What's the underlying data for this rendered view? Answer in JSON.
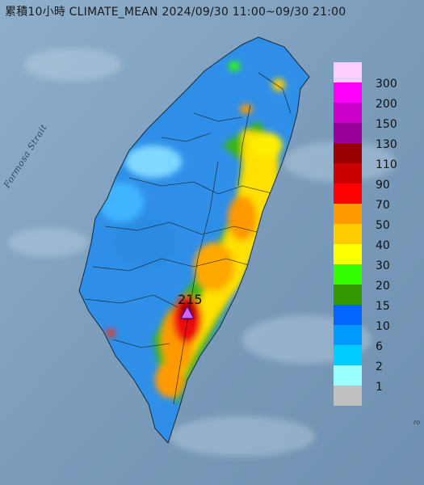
{
  "title": "累積10小時 CLIMATE_MEAN 2024/09/30 11:00~09/30 21:00",
  "strait_label": "Formosa Strait",
  "peak_value": "215",
  "edge_mark": "ro",
  "legend": [
    {
      "label": "300",
      "color": "#ffccff"
    },
    {
      "label": "200",
      "color": "#ff00ff"
    },
    {
      "label": "150",
      "color": "#cc00cc"
    },
    {
      "label": "130",
      "color": "#990099"
    },
    {
      "label": "110",
      "color": "#990000"
    },
    {
      "label": "90",
      "color": "#cc0000"
    },
    {
      "label": "70",
      "color": "#ff0000"
    },
    {
      "label": "50",
      "color": "#ff9900"
    },
    {
      "label": "40",
      "color": "#ffcc00"
    },
    {
      "label": "30",
      "color": "#ffff00"
    },
    {
      "label": "20",
      "color": "#33ff00"
    },
    {
      "label": "15",
      "color": "#339900"
    },
    {
      "label": "10",
      "color": "#0066ff"
    },
    {
      "label": "6",
      "color": "#0099ff"
    },
    {
      "label": "2",
      "color": "#00ccff"
    },
    {
      "label": "1",
      "color": "#99ffff"
    },
    {
      "label": "",
      "color": "#c0c0c0"
    }
  ]
}
